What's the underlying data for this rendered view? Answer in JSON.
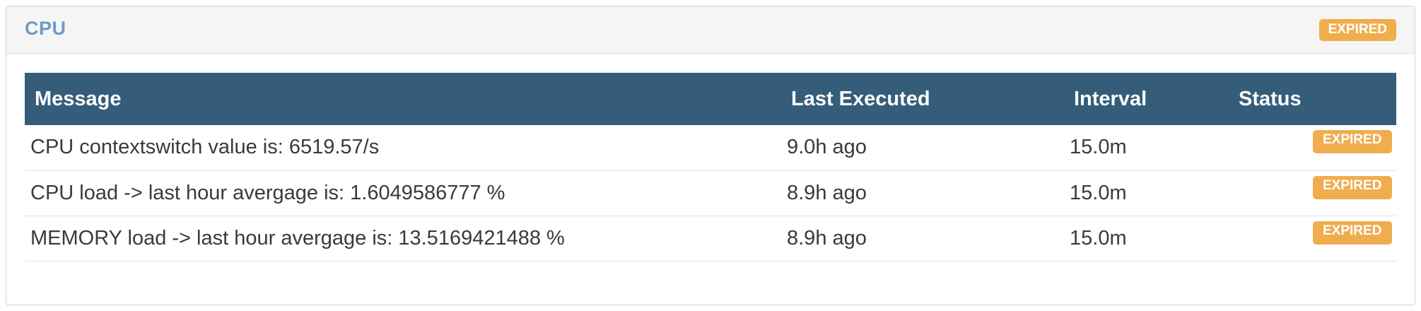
{
  "panel": {
    "title": "CPU",
    "status_badge": "EXPIRED"
  },
  "table": {
    "headers": {
      "message": "Message",
      "last_executed": "Last Executed",
      "interval": "Interval",
      "status": "Status"
    },
    "rows": [
      {
        "message": "CPU contextswitch value is: 6519.57/s",
        "last_executed": "9.0h ago",
        "interval": "15.0m",
        "status": "EXPIRED"
      },
      {
        "message": "CPU load -> last hour avergage is: 1.6049586777 %",
        "last_executed": "8.9h ago",
        "interval": "15.0m",
        "status": "EXPIRED"
      },
      {
        "message": "MEMORY load -> last hour avergage is: 13.5169421488 %",
        "last_executed": "8.9h ago",
        "interval": "15.0m",
        "status": "EXPIRED"
      }
    ]
  },
  "colors": {
    "title": "#6f9bc4",
    "table_header_bg": "#355d7a",
    "badge_warning": "#f0ad4e",
    "panel_header_bg": "#f5f5f5"
  }
}
